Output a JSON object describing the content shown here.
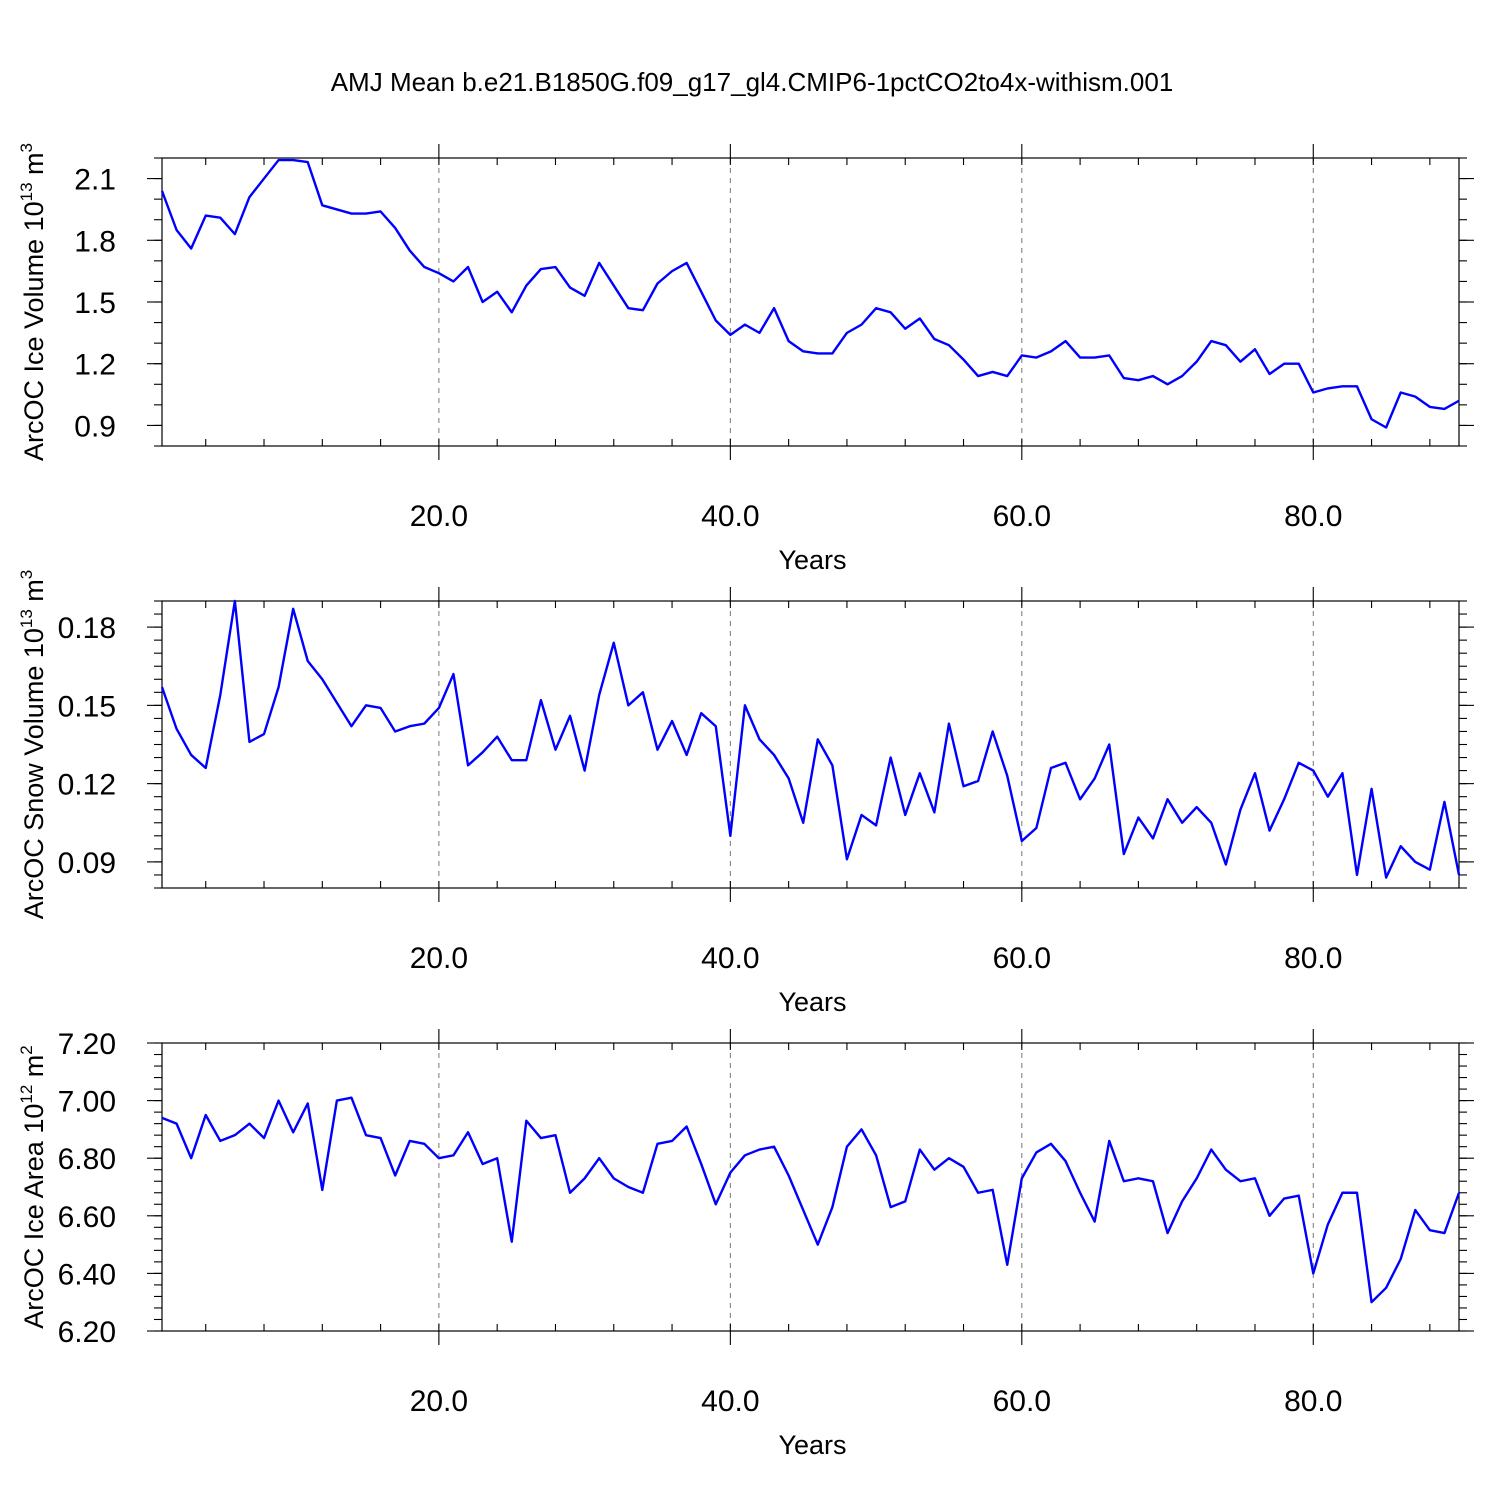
{
  "chart_title": "AMJ Mean b.e21.B1850G.f09_g17_gl4.CMIP6-1pctCO2to4x-withism.001",
  "colors": {
    "series": "#0000ff",
    "axis": "#000000",
    "grid": "#777777",
    "background": "#ffffff"
  },
  "chart_data": [
    {
      "type": "line",
      "xlabel": "Years",
      "ylabel": "ArcOC Ice Volume 10",
      "ylabel_exponent": "13",
      "ylabel_unit": " m",
      "ylabel_unit_exponent": "3",
      "xlim": [
        1,
        90
      ],
      "ylim": [
        0.8,
        2.2
      ],
      "x_ticks": [
        20,
        40,
        60,
        80
      ],
      "x_tick_labels": [
        "20.0",
        "40.0",
        "60.0",
        "80.0"
      ],
      "y_ticks": [
        0.9,
        1.2,
        1.5,
        1.8,
        2.1
      ],
      "y_tick_labels": [
        "0.9",
        "1.2",
        "1.5",
        "1.8",
        "2.1"
      ],
      "x_minor_step": 4,
      "y_minor_step": 0.1,
      "grid": "vertical dashed at major x ticks",
      "series": [
        {
          "x_start": 1,
          "x_step": 1,
          "values": [
            2.04,
            1.85,
            1.76,
            1.92,
            1.91,
            1.83,
            2.01,
            2.1,
            2.19,
            2.19,
            2.18,
            1.97,
            1.95,
            1.93,
            1.93,
            1.94,
            1.86,
            1.75,
            1.67,
            1.64,
            1.6,
            1.67,
            1.5,
            1.55,
            1.45,
            1.58,
            1.66,
            1.67,
            1.57,
            1.53,
            1.69,
            1.58,
            1.47,
            1.46,
            1.59,
            1.65,
            1.69,
            1.55,
            1.41,
            1.34,
            1.39,
            1.35,
            1.47,
            1.31,
            1.26,
            1.25,
            1.25,
            1.35,
            1.39,
            1.47,
            1.45,
            1.37,
            1.42,
            1.32,
            1.29,
            1.22,
            1.14,
            1.16,
            1.14,
            1.24,
            1.23,
            1.26,
            1.31,
            1.23,
            1.23,
            1.24,
            1.13,
            1.12,
            1.14,
            1.1,
            1.14,
            1.21,
            1.31,
            1.29,
            1.21,
            1.27,
            1.15,
            1.2,
            1.2,
            1.06,
            1.08,
            1.09,
            1.09,
            0.93,
            0.89,
            1.06,
            1.04,
            0.99,
            0.98,
            1.02
          ]
        }
      ]
    },
    {
      "type": "line",
      "xlabel": "Years",
      "ylabel": "ArcOC Snow Volume 10",
      "ylabel_exponent": "13",
      "ylabel_unit": " m",
      "ylabel_unit_exponent": "3",
      "xlim": [
        1,
        90
      ],
      "ylim": [
        0.08,
        0.19
      ],
      "x_ticks": [
        20,
        40,
        60,
        80
      ],
      "x_tick_labels": [
        "20.0",
        "40.0",
        "60.0",
        "80.0"
      ],
      "y_ticks": [
        0.09,
        0.12,
        0.15,
        0.18
      ],
      "y_tick_labels": [
        "0.09",
        "0.12",
        "0.15",
        "0.18"
      ],
      "x_minor_step": 4,
      "y_minor_step": 0.005,
      "grid": "vertical dashed at major x ticks",
      "series": [
        {
          "x_start": 1,
          "x_step": 1,
          "values": [
            0.157,
            0.141,
            0.131,
            0.126,
            0.154,
            0.19,
            0.136,
            0.139,
            0.157,
            0.187,
            0.167,
            0.16,
            0.151,
            0.142,
            0.15,
            0.149,
            0.14,
            0.142,
            0.143,
            0.149,
            0.162,
            0.127,
            0.132,
            0.138,
            0.129,
            0.129,
            0.152,
            0.133,
            0.146,
            0.125,
            0.154,
            0.174,
            0.15,
            0.155,
            0.133,
            0.144,
            0.131,
            0.147,
            0.142,
            0.1,
            0.15,
            0.137,
            0.131,
            0.122,
            0.105,
            0.137,
            0.127,
            0.091,
            0.108,
            0.104,
            0.13,
            0.108,
            0.124,
            0.109,
            0.143,
            0.119,
            0.121,
            0.14,
            0.123,
            0.098,
            0.103,
            0.126,
            0.128,
            0.114,
            0.122,
            0.135,
            0.093,
            0.107,
            0.099,
            0.114,
            0.105,
            0.111,
            0.105,
            0.089,
            0.11,
            0.124,
            0.102,
            0.114,
            0.128,
            0.125,
            0.115,
            0.124,
            0.085,
            0.118,
            0.084,
            0.096,
            0.09,
            0.087,
            0.113,
            0.085
          ]
        }
      ]
    },
    {
      "type": "line",
      "xlabel": "Years",
      "ylabel": "ArcOC Ice Area 10",
      "ylabel_exponent": "12",
      "ylabel_unit": " m",
      "ylabel_unit_exponent": "2",
      "xlim": [
        1,
        90
      ],
      "ylim": [
        6.2,
        7.2
      ],
      "x_ticks": [
        20,
        40,
        60,
        80
      ],
      "x_tick_labels": [
        "20.0",
        "40.0",
        "60.0",
        "80.0"
      ],
      "y_ticks": [
        6.2,
        6.4,
        6.6,
        6.8,
        7.0,
        7.2
      ],
      "y_tick_labels": [
        "6.20",
        "6.40",
        "6.60",
        "6.80",
        "7.00",
        "7.20"
      ],
      "x_minor_step": 4,
      "y_minor_step": 0.04,
      "grid": "vertical dashed at major x ticks",
      "series": [
        {
          "x_start": 1,
          "x_step": 1,
          "values": [
            6.94,
            6.92,
            6.8,
            6.95,
            6.86,
            6.88,
            6.92,
            6.87,
            7.0,
            6.89,
            6.99,
            6.69,
            7.0,
            7.01,
            6.88,
            6.87,
            6.74,
            6.86,
            6.85,
            6.8,
            6.81,
            6.89,
            6.78,
            6.8,
            6.51,
            6.93,
            6.87,
            6.88,
            6.68,
            6.73,
            6.8,
            6.73,
            6.7,
            6.68,
            6.85,
            6.86,
            6.91,
            6.78,
            6.64,
            6.75,
            6.81,
            6.83,
            6.84,
            6.74,
            6.62,
            6.5,
            6.63,
            6.84,
            6.9,
            6.81,
            6.63,
            6.65,
            6.83,
            6.76,
            6.8,
            6.77,
            6.68,
            6.69,
            6.43,
            6.73,
            6.82,
            6.85,
            6.79,
            6.68,
            6.58,
            6.86,
            6.72,
            6.73,
            6.72,
            6.54,
            6.65,
            6.73,
            6.83,
            6.76,
            6.72,
            6.73,
            6.6,
            6.66,
            6.67,
            6.4,
            6.57,
            6.68,
            6.68,
            6.3,
            6.35,
            6.45,
            6.62,
            6.55,
            6.54,
            6.68
          ]
        }
      ]
    }
  ]
}
